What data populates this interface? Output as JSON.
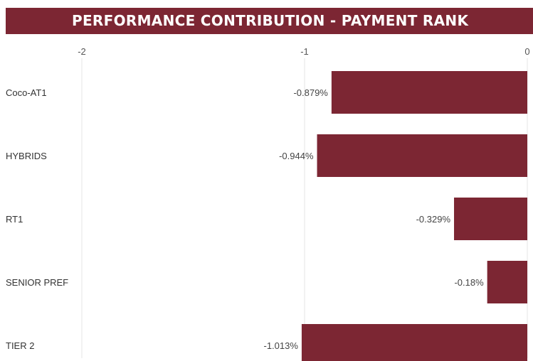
{
  "header": {
    "title": "PERFORMANCE CONTRIBUTION - PAYMENT RANK"
  },
  "colors": {
    "bar": "#7c2633",
    "header_bg": "#7c2633",
    "gridline": "#e6e6e6"
  },
  "chart_data": {
    "type": "bar",
    "orientation": "horizontal",
    "title": "PERFORMANCE CONTRIBUTION - PAYMENT RANK",
    "categories": [
      "Coco-AT1",
      "HYBRIDS",
      "RT1",
      "SENIOR PREF",
      "TIER 2"
    ],
    "values": [
      -0.879,
      -0.944,
      -0.329,
      -0.18,
      -1.013
    ],
    "value_labels": [
      "-0.879%",
      "-0.944%",
      "-0.329%",
      "-0.18%",
      "-1.013%"
    ],
    "x_ticks": [
      -2,
      -1,
      0
    ],
    "x_tick_labels": [
      "-2",
      "-1",
      "0"
    ],
    "xlim": [
      -2,
      0
    ],
    "xlabel": "",
    "ylabel": "",
    "grid": true,
    "legend": "none",
    "axis_position": "top"
  }
}
